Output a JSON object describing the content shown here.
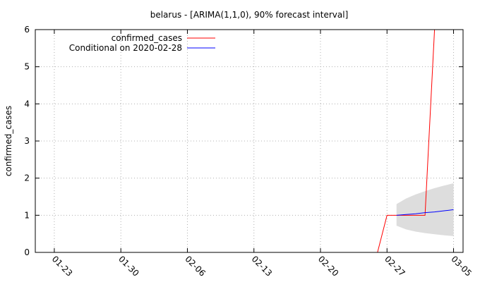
{
  "chart_data": {
    "type": "line",
    "title": "belarus -  [ARIMA(1,1,0), 90% forecast interval]",
    "xlabel": "",
    "ylabel": "confirmed_cases",
    "ylim": [
      0,
      6
    ],
    "yticks": [
      "0",
      "1",
      "2",
      "3",
      "4",
      "5",
      "6"
    ],
    "xlim": [
      "2020-01-21",
      "2020-03-06"
    ],
    "xticks": [
      {
        "date": "2020-01-23",
        "label": "01-23"
      },
      {
        "date": "2020-01-30",
        "label": "01-30"
      },
      {
        "date": "2020-02-06",
        "label": "02-06"
      },
      {
        "date": "2020-02-13",
        "label": "02-13"
      },
      {
        "date": "2020-02-20",
        "label": "02-20"
      },
      {
        "date": "2020-02-27",
        "label": "02-27"
      },
      {
        "date": "2020-03-05",
        "label": "03-05"
      }
    ],
    "grid": true,
    "legend_position": "top-left",
    "series": [
      {
        "name": "confirmed_cases",
        "color": "#ff0000",
        "points": [
          {
            "x": "2020-02-26",
            "y": 0
          },
          {
            "x": "2020-02-27",
            "y": 1
          },
          {
            "x": "2020-02-28",
            "y": 1
          },
          {
            "x": "2020-03-01",
            "y": 1
          },
          {
            "x": "2020-03-02",
            "y": 1
          },
          {
            "x": "2020-03-03",
            "y": 6
          }
        ]
      },
      {
        "name": "Conditional on 2020-02-28",
        "color": "#0000ff",
        "points": [
          {
            "x": "2020-02-28",
            "y": 1.0
          },
          {
            "x": "2020-02-29",
            "y": 1.02
          },
          {
            "x": "2020-03-01",
            "y": 1.04
          },
          {
            "x": "2020-03-02",
            "y": 1.07
          },
          {
            "x": "2020-03-03",
            "y": 1.09
          },
          {
            "x": "2020-03-04",
            "y": 1.12
          },
          {
            "x": "2020-03-05",
            "y": 1.15
          }
        ]
      }
    ],
    "interval": {
      "color": "#dddddd",
      "points": [
        {
          "x": "2020-02-28",
          "lo": 0.72,
          "hi": 1.3
        },
        {
          "x": "2020-02-29",
          "lo": 0.62,
          "hi": 1.45
        },
        {
          "x": "2020-03-01",
          "lo": 0.56,
          "hi": 1.56
        },
        {
          "x": "2020-03-02",
          "lo": 0.52,
          "hi": 1.65
        },
        {
          "x": "2020-03-03",
          "lo": 0.49,
          "hi": 1.73
        },
        {
          "x": "2020-03-04",
          "lo": 0.46,
          "hi": 1.8
        },
        {
          "x": "2020-03-05",
          "lo": 0.44,
          "hi": 1.86
        }
      ]
    }
  }
}
